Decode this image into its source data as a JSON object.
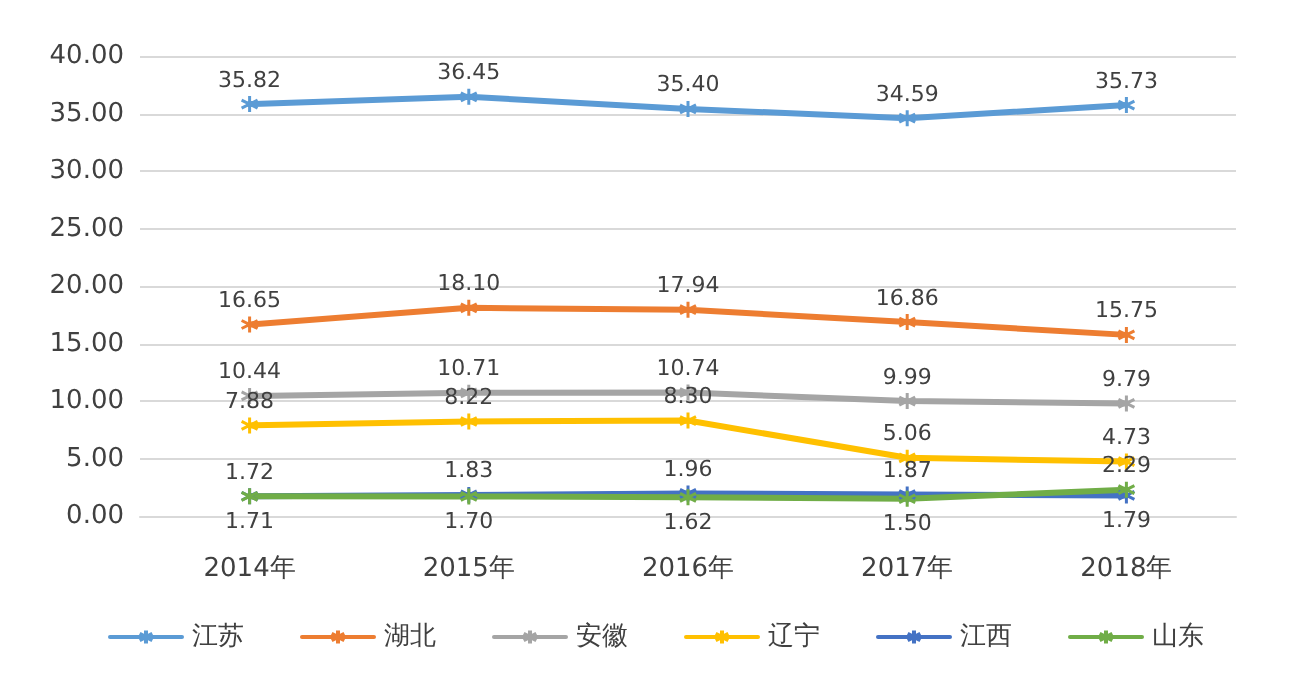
{
  "chart_data": {
    "type": "line",
    "categories": [
      "2014年",
      "2015年",
      "2016年",
      "2017年",
      "2018年"
    ],
    "ylim": [
      0,
      40
    ],
    "yticks": [
      {
        "value": 0,
        "label": "0.00"
      },
      {
        "value": 5,
        "label": "5.00"
      },
      {
        "value": 10,
        "label": "10.00"
      },
      {
        "value": 15,
        "label": "15.00"
      },
      {
        "value": 20,
        "label": "20.00"
      },
      {
        "value": 25,
        "label": "25.00"
      },
      {
        "value": 30,
        "label": "30.00"
      },
      {
        "value": 35,
        "label": "35.00"
      },
      {
        "value": 40,
        "label": "40.00"
      }
    ],
    "grid": "y",
    "legend": "bottom",
    "marker": "cross",
    "line_style": "solid",
    "series": [
      {
        "name": "江苏",
        "color": "#5b9bd5",
        "values": [
          35.82,
          36.45,
          35.4,
          34.59,
          35.73
        ],
        "value_labels": [
          "35.82",
          "36.45",
          "35.40",
          "34.59",
          "35.73"
        ]
      },
      {
        "name": "湖北",
        "color": "#ed7d31",
        "values": [
          16.65,
          18.1,
          17.94,
          16.86,
          15.75
        ],
        "value_labels": [
          "16.65",
          "18.10",
          "17.94",
          "16.86",
          "15.75"
        ]
      },
      {
        "name": "安徽",
        "color": "#a5a5a5",
        "values": [
          10.44,
          10.71,
          10.74,
          9.99,
          9.79
        ],
        "value_labels": [
          "10.44",
          "10.71",
          "10.74",
          "9.99",
          "9.79"
        ]
      },
      {
        "name": "辽宁",
        "color": "#ffc000",
        "values": [
          7.88,
          8.22,
          8.3,
          5.06,
          4.73
        ],
        "value_labels": [
          "7.88",
          "8.22",
          "8.30",
          "5.06",
          "4.73"
        ]
      },
      {
        "name": "江西",
        "color": "#4472c4",
        "values": [
          1.72,
          1.83,
          1.96,
          1.87,
          1.79
        ],
        "value_labels": [
          "1.72",
          "1.83",
          "1.96",
          "1.87",
          "1.79"
        ]
      },
      {
        "name": "山东",
        "color": "#70ad47",
        "values": [
          1.71,
          1.7,
          1.62,
          1.5,
          2.29
        ],
        "value_labels": [
          "1.71",
          "1.70",
          "1.62",
          "1.50",
          "2.29"
        ]
      }
    ]
  }
}
